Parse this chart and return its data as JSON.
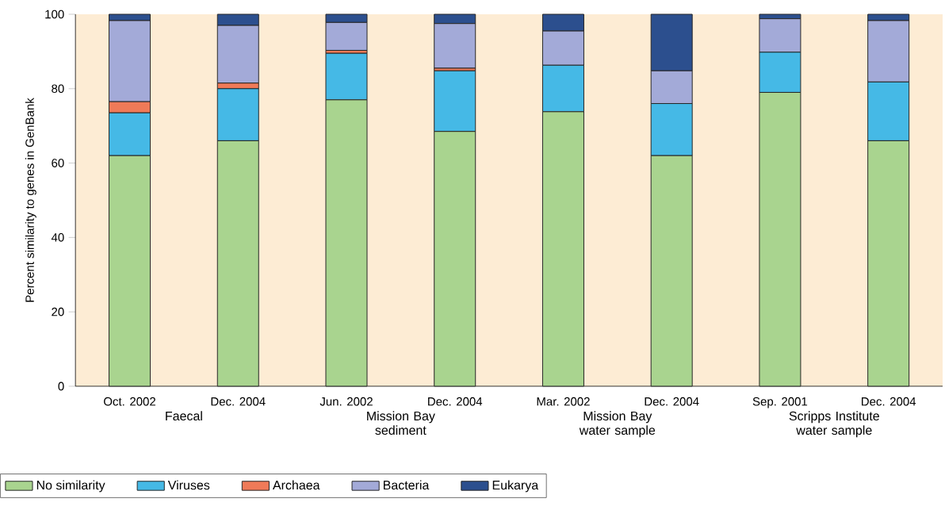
{
  "chart_data": {
    "type": "bar",
    "stacked": true,
    "ylabel": "Percent similarity to genes in GenBank",
    "categories": [
      "Oct. 2002",
      "Dec. 2004",
      "Jun. 2002",
      "Dec. 2004",
      "Mar. 2002",
      "Dec. 2004",
      "Sep. 2001",
      "Dec. 2004"
    ],
    "series": [
      {
        "name": "No similarity",
        "color": "#a9d48f",
        "values": [
          62,
          66,
          77,
          68.5,
          73.8,
          62,
          79,
          66
        ]
      },
      {
        "name": "Viruses",
        "color": "#45b9e6",
        "values": [
          11.5,
          14,
          12.5,
          16.3,
          12.5,
          14,
          10.8,
          15.8
        ]
      },
      {
        "name": "Archaea",
        "color": "#ef7a58",
        "values": [
          3,
          1.5,
          0.8,
          0.7,
          0,
          0,
          0,
          0
        ]
      },
      {
        "name": "Bacteria",
        "color": "#a3aad8",
        "values": [
          21.8,
          15.5,
          7.5,
          12,
          9.2,
          8.8,
          9,
          16.5
        ]
      },
      {
        "name": "Eukarya",
        "color": "#2c4f8e",
        "values": [
          1.7,
          3,
          2.2,
          2.5,
          4.5,
          15.2,
          1.2,
          1.7
        ]
      }
    ],
    "annotations": [
      "Faecal",
      "Mission Bay sediment",
      "Mission Bay water sample",
      "Scripps Institute water sample"
    ],
    "ylim": [
      0,
      100
    ],
    "yticks": [
      0,
      20,
      40,
      60,
      80,
      100
    ],
    "legend": "bottom"
  }
}
